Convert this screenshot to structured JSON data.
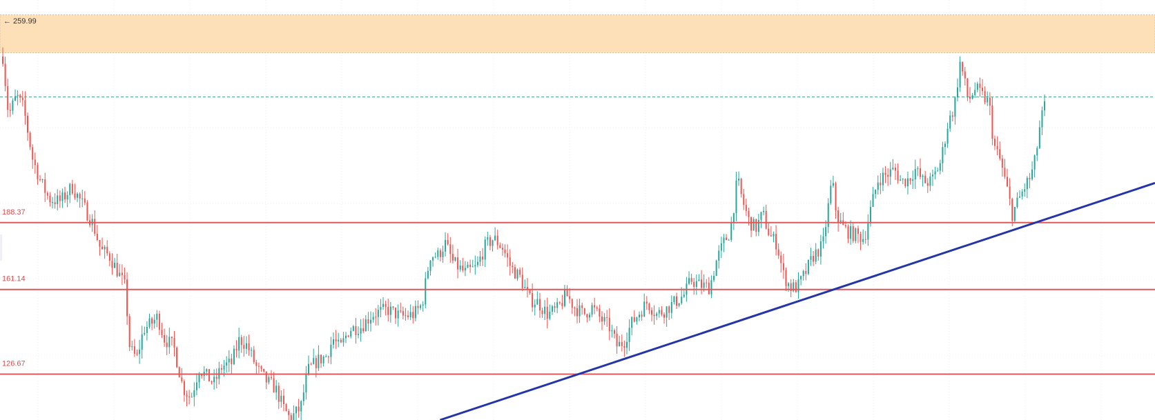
{
  "chart_data": {
    "type": "candlestick",
    "ylim": [
      108,
      279
    ],
    "grid": true,
    "zone": {
      "from": 257.5,
      "to": 273.0
    },
    "dashed_level": 239.5,
    "high_marker": {
      "arrow": "←",
      "value": "259.99"
    },
    "levels": [
      {
        "value": 188.37,
        "label": "188.37"
      },
      {
        "value": 161.14,
        "label": "161.14"
      },
      {
        "value": 126.67,
        "label": "126.67"
      }
    ],
    "trendline": {
      "x_start": 0.381,
      "y_start": 108,
      "x_end": 1.0,
      "y_end": 204.5
    },
    "anchors": [
      [
        0.0,
        256
      ],
      [
        0.005,
        232
      ],
      [
        0.012,
        240
      ],
      [
        0.018,
        235
      ],
      [
        0.026,
        214
      ],
      [
        0.033,
        205
      ],
      [
        0.04,
        198
      ],
      [
        0.05,
        197
      ],
      [
        0.06,
        203
      ],
      [
        0.07,
        195
      ],
      [
        0.078,
        188
      ],
      [
        0.085,
        177
      ],
      [
        0.092,
        175
      ],
      [
        0.1,
        168
      ],
      [
        0.106,
        162
      ],
      [
        0.11,
        137
      ],
      [
        0.116,
        133
      ],
      [
        0.122,
        145
      ],
      [
        0.128,
        147
      ],
      [
        0.134,
        150
      ],
      [
        0.14,
        141
      ],
      [
        0.148,
        138
      ],
      [
        0.156,
        121
      ],
      [
        0.163,
        117
      ],
      [
        0.17,
        129
      ],
      [
        0.176,
        126
      ],
      [
        0.183,
        123
      ],
      [
        0.19,
        130
      ],
      [
        0.198,
        131
      ],
      [
        0.205,
        141
      ],
      [
        0.212,
        138
      ],
      [
        0.22,
        129
      ],
      [
        0.228,
        124
      ],
      [
        0.236,
        121
      ],
      [
        0.243,
        113
      ],
      [
        0.248,
        109
      ],
      [
        0.252,
        110
      ],
      [
        0.258,
        113
      ],
      [
        0.264,
        128
      ],
      [
        0.272,
        132
      ],
      [
        0.28,
        134
      ],
      [
        0.286,
        141
      ],
      [
        0.292,
        137
      ],
      [
        0.3,
        145
      ],
      [
        0.31,
        146
      ],
      [
        0.32,
        151
      ],
      [
        0.333,
        153
      ],
      [
        0.345,
        150
      ],
      [
        0.356,
        151
      ],
      [
        0.363,
        155
      ],
      [
        0.37,
        175
      ],
      [
        0.377,
        175
      ],
      [
        0.383,
        180
      ],
      [
        0.39,
        172
      ],
      [
        0.4,
        168
      ],
      [
        0.41,
        170
      ],
      [
        0.418,
        179
      ],
      [
        0.425,
        182
      ],
      [
        0.433,
        178
      ],
      [
        0.44,
        170
      ],
      [
        0.448,
        166
      ],
      [
        0.456,
        157
      ],
      [
        0.463,
        156
      ],
      [
        0.472,
        151
      ],
      [
        0.48,
        153
      ],
      [
        0.488,
        159
      ],
      [
        0.495,
        154
      ],
      [
        0.503,
        151
      ],
      [
        0.51,
        154
      ],
      [
        0.518,
        149
      ],
      [
        0.525,
        146
      ],
      [
        0.532,
        138
      ],
      [
        0.538,
        140
      ],
      [
        0.544,
        147
      ],
      [
        0.55,
        151
      ],
      [
        0.558,
        156
      ],
      [
        0.566,
        151
      ],
      [
        0.574,
        153
      ],
      [
        0.582,
        156
      ],
      [
        0.59,
        159
      ],
      [
        0.596,
        165
      ],
      [
        0.603,
        163
      ],
      [
        0.612,
        162
      ],
      [
        0.618,
        173
      ],
      [
        0.624,
        180
      ],
      [
        0.63,
        185
      ],
      [
        0.636,
        206
      ],
      [
        0.64,
        198
      ],
      [
        0.646,
        189
      ],
      [
        0.652,
        186
      ],
      [
        0.658,
        192
      ],
      [
        0.664,
        183
      ],
      [
        0.67,
        180
      ],
      [
        0.676,
        167
      ],
      [
        0.682,
        162
      ],
      [
        0.688,
        162
      ],
      [
        0.695,
        168
      ],
      [
        0.702,
        175
      ],
      [
        0.71,
        179
      ],
      [
        0.718,
        206
      ],
      [
        0.722,
        191
      ],
      [
        0.728,
        186
      ],
      [
        0.734,
        184
      ],
      [
        0.74,
        183
      ],
      [
        0.746,
        182
      ],
      [
        0.752,
        195
      ],
      [
        0.758,
        206
      ],
      [
        0.766,
        208
      ],
      [
        0.772,
        210
      ],
      [
        0.778,
        205
      ],
      [
        0.784,
        206
      ],
      [
        0.79,
        210
      ],
      [
        0.797,
        205
      ],
      [
        0.804,
        205
      ],
      [
        0.812,
        213
      ],
      [
        0.818,
        228
      ],
      [
        0.824,
        236
      ],
      [
        0.829,
        254
      ],
      [
        0.836,
        238
      ],
      [
        0.842,
        243
      ],
      [
        0.848,
        240
      ],
      [
        0.854,
        237
      ],
      [
        0.858,
        220
      ],
      [
        0.864,
        213
      ],
      [
        0.87,
        201
      ],
      [
        0.874,
        192
      ],
      [
        0.88,
        198
      ],
      [
        0.886,
        204
      ],
      [
        0.89,
        207
      ],
      [
        0.894,
        214
      ],
      [
        0.898,
        228
      ],
      [
        0.902,
        236
      ]
    ]
  }
}
